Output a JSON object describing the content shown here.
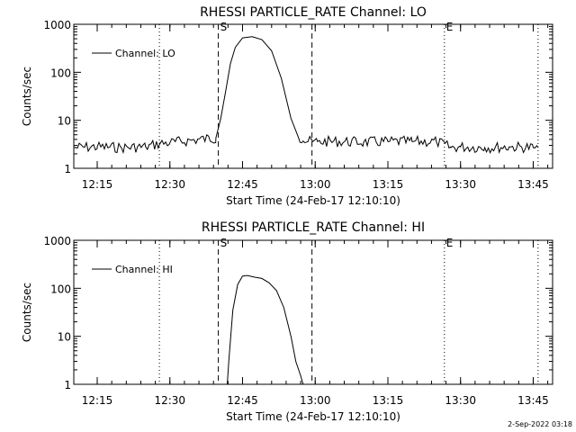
{
  "footer": {
    "date": "2-Sep-2022 03:18"
  },
  "chart_data": [
    {
      "type": "line",
      "title": "RHESSI PARTICLE_RATE Channel: LO",
      "xlabel": "Start Time (24-Feb-17 12:10:10)",
      "ylabel": "Counts/sec",
      "y_scale": "log",
      "ylim": [
        1,
        1000
      ],
      "xlim": [
        "12:10:10",
        "13:49:00"
      ],
      "x_ticks": [
        "12:15",
        "12:30",
        "12:45",
        "13:00",
        "13:15",
        "13:30",
        "13:45"
      ],
      "y_ticks": [
        "1",
        "10",
        "100",
        "1000"
      ],
      "grid": false,
      "legend": {
        "position": "top-left",
        "entries": [
          "Channel: LO"
        ]
      },
      "markers": [
        {
          "time": "12:27:50",
          "style": "dotted",
          "label": ""
        },
        {
          "time": "12:40:00",
          "style": "dashed",
          "label": "S"
        },
        {
          "time": "12:59:20",
          "style": "dashed",
          "label": ""
        },
        {
          "time": "13:26:40",
          "style": "dotted",
          "label": "E"
        },
        {
          "time": "13:46:00",
          "style": "dotted",
          "label": ""
        }
      ],
      "series": [
        {
          "name": "Channel: LO",
          "x": [
            "12:10:10",
            "12:15:00",
            "12:20:00",
            "12:25:00",
            "12:28:00",
            "12:30:00",
            "12:35:00",
            "12:39:30",
            "12:40:30",
            "12:41:30",
            "12:42:30",
            "12:43:30",
            "12:45:00",
            "12:47:00",
            "12:49:00",
            "12:51:00",
            "12:53:00",
            "12:55:00",
            "12:56:30",
            "12:57:30",
            "12:58:30",
            "12:59:30",
            "13:00:30",
            "13:05:00",
            "13:10:00",
            "13:15:00",
            "13:20:00",
            "13:25:00",
            "13:28:00",
            "13:30:00",
            "13:35:00",
            "13:40:00",
            "13:45:00",
            "13:46:00"
          ],
          "values": [
            2.7,
            2.8,
            2.7,
            2.8,
            3.3,
            3.4,
            3.9,
            4.3,
            11,
            40,
            150,
            330,
            520,
            550,
            480,
            280,
            75,
            11,
            4.5,
            3.7,
            3.6,
            3.6,
            3.6,
            3.6,
            3.5,
            3.6,
            3.6,
            3.6,
            2.7,
            2.8,
            2.7,
            2.8,
            2.7,
            2.7
          ]
        }
      ]
    },
    {
      "type": "line",
      "title": "RHESSI PARTICLE_RATE Channel: HI",
      "xlabel": "Start Time (24-Feb-17 12:10:10)",
      "ylabel": "Counts/sec",
      "y_scale": "log",
      "ylim": [
        1,
        1000
      ],
      "xlim": [
        "12:10:10",
        "13:49:00"
      ],
      "x_ticks": [
        "12:15",
        "12:30",
        "12:45",
        "13:00",
        "13:15",
        "13:30",
        "13:45"
      ],
      "y_ticks": [
        "1",
        "10",
        "100",
        "1000"
      ],
      "grid": false,
      "legend": {
        "position": "top-left",
        "entries": [
          "Channel: HI"
        ]
      },
      "markers": [
        {
          "time": "12:27:50",
          "style": "dotted",
          "label": ""
        },
        {
          "time": "12:40:00",
          "style": "dashed",
          "label": "S"
        },
        {
          "time": "12:59:20",
          "style": "dashed",
          "label": ""
        },
        {
          "time": "13:26:40",
          "style": "dotted",
          "label": "E"
        },
        {
          "time": "13:46:00",
          "style": "dotted",
          "label": ""
        }
      ],
      "series": [
        {
          "name": "Channel: HI",
          "x": [
            "12:41:50",
            "12:42:10",
            "12:43:00",
            "12:44:00",
            "12:45:00",
            "12:46:00",
            "12:47:30",
            "12:49:00",
            "12:50:30",
            "12:52:00",
            "12:53:30",
            "12:55:00",
            "12:56:00",
            "12:57:00",
            "12:57:30"
          ],
          "values": [
            1,
            3,
            35,
            120,
            180,
            185,
            170,
            160,
            130,
            90,
            40,
            10,
            3,
            1.5,
            1
          ]
        }
      ]
    }
  ]
}
